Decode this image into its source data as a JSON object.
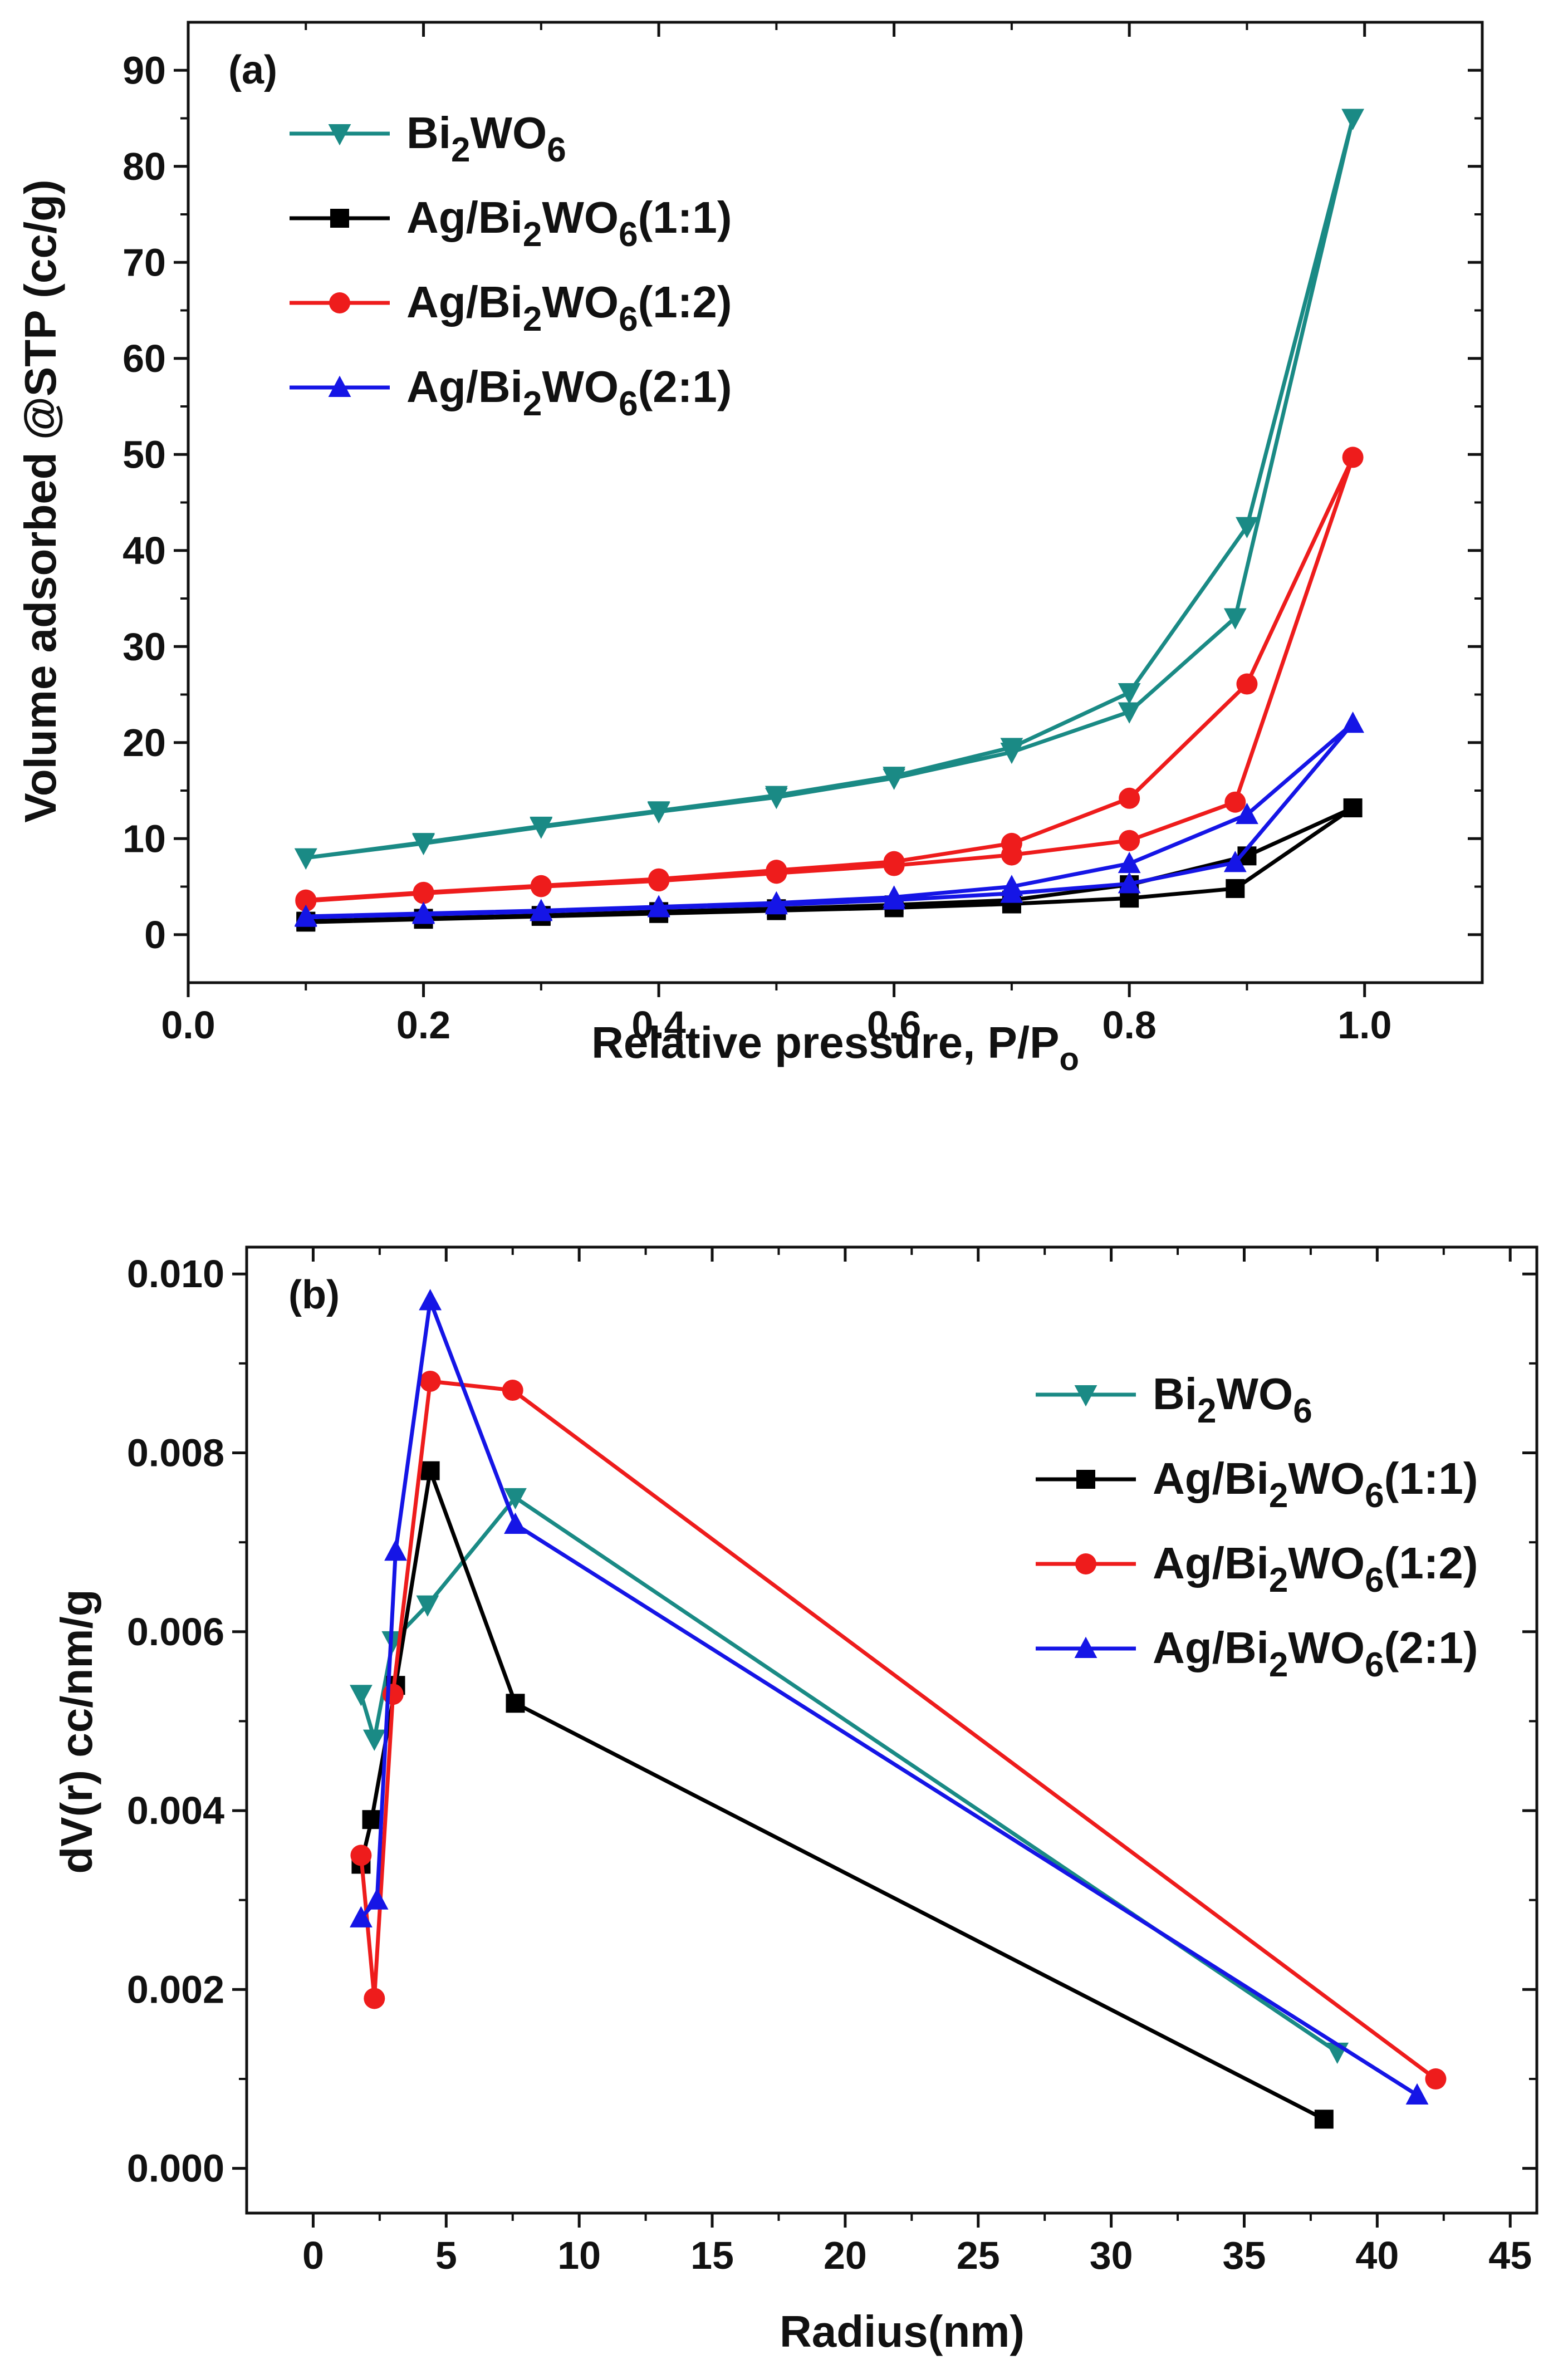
{
  "chart_data": [
    {
      "type": "line",
      "panel_label": "(a)",
      "title": "",
      "xlabel": "Relative pressure, P/P",
      "xlabel_sub": "o",
      "ylabel": "Volume adsorbed @STP (cc/g)",
      "xlim": [
        0.0,
        1.1
      ],
      "ylim": [
        -5,
        95
      ],
      "x_ticks": [
        "0.0",
        "0.2",
        "0.4",
        "0.6",
        "0.8",
        "1.0"
      ],
      "y_ticks": [
        "0",
        "10",
        "20",
        "30",
        "40",
        "50",
        "60",
        "70",
        "80",
        "90"
      ],
      "legend_position": "top-left",
      "series": [
        {
          "name": "Bi2WO6",
          "label_parts": [
            "Bi",
            "2",
            "WO",
            "6",
            ""
          ],
          "color": "#1a8a85",
          "marker": "triangle-down",
          "points": [
            [
              0.1,
              8
            ],
            [
              0.2,
              9.5
            ],
            [
              0.3,
              11.2
            ],
            [
              0.4,
              12.8
            ],
            [
              0.5,
              14.3
            ],
            [
              0.6,
              16.3
            ],
            [
              0.7,
              19
            ],
            [
              0.8,
              23.2
            ],
            [
              0.89,
              33
            ],
            [
              0.99,
              85
            ],
            [
              0.9,
              42.5
            ],
            [
              0.8,
              25.2
            ],
            [
              0.7,
              19.5
            ],
            [
              0.6,
              16.5
            ],
            [
              0.5,
              14.5
            ],
            [
              0.4,
              12.9
            ],
            [
              0.3,
              11.3
            ],
            [
              0.2,
              9.6
            ],
            [
              0.1,
              8
            ]
          ]
        },
        {
          "name": "Ag/Bi2WO6(1:1)",
          "label_parts": [
            "Ag/Bi",
            "2",
            "WO",
            "6",
            "(1:1)"
          ],
          "color": "#000000",
          "marker": "square",
          "points": [
            [
              0.1,
              1.3
            ],
            [
              0.2,
              1.6
            ],
            [
              0.3,
              1.9
            ],
            [
              0.4,
              2.2
            ],
            [
              0.5,
              2.5
            ],
            [
              0.6,
              2.8
            ],
            [
              0.7,
              3.2
            ],
            [
              0.8,
              3.8
            ],
            [
              0.89,
              4.8
            ],
            [
              0.99,
              13.2
            ],
            [
              0.9,
              8.2
            ],
            [
              0.8,
              5.2
            ],
            [
              0.7,
              3.6
            ],
            [
              0.6,
              3.1
            ],
            [
              0.5,
              2.7
            ],
            [
              0.4,
              2.4
            ],
            [
              0.3,
              2.0
            ],
            [
              0.2,
              1.7
            ],
            [
              0.1,
              1.4
            ]
          ]
        },
        {
          "name": "Ag/Bi2WO6(1:2)",
          "label_parts": [
            "Ag/Bi",
            "2",
            "WO",
            "6",
            "(1:2)"
          ],
          "color": "#ee1c1c",
          "marker": "circle",
          "points": [
            [
              0.1,
              3.5
            ],
            [
              0.2,
              4.3
            ],
            [
              0.3,
              5
            ],
            [
              0.4,
              5.6
            ],
            [
              0.5,
              6.4
            ],
            [
              0.6,
              7.2
            ],
            [
              0.7,
              8.3
            ],
            [
              0.8,
              9.8
            ],
            [
              0.89,
              13.8
            ],
            [
              0.99,
              49.7
            ],
            [
              0.9,
              26.1
            ],
            [
              0.8,
              14.2
            ],
            [
              0.7,
              9.5
            ],
            [
              0.6,
              7.6
            ],
            [
              0.5,
              6.7
            ],
            [
              0.4,
              5.8
            ],
            [
              0.3,
              5.1
            ],
            [
              0.2,
              4.4
            ],
            [
              0.1,
              3.6
            ]
          ]
        },
        {
          "name": "Ag/Bi2WO6(2:1)",
          "label_parts": [
            "Ag/Bi",
            "2",
            "WO",
            "6",
            "(2:1)"
          ],
          "color": "#1515e6",
          "marker": "triangle-up",
          "points": [
            [
              0.1,
              1.8
            ],
            [
              0.2,
              2.1
            ],
            [
              0.3,
              2.4
            ],
            [
              0.4,
              2.8
            ],
            [
              0.5,
              3.1
            ],
            [
              0.6,
              3.6
            ],
            [
              0.7,
              4.3
            ],
            [
              0.8,
              5.3
            ],
            [
              0.89,
              7.5
            ],
            [
              0.99,
              22
            ],
            [
              0.9,
              12.5
            ],
            [
              0.8,
              7.4
            ],
            [
              0.7,
              5
            ],
            [
              0.6,
              3.9
            ],
            [
              0.5,
              3.3
            ],
            [
              0.4,
              2.9
            ],
            [
              0.3,
              2.5
            ],
            [
              0.2,
              2.2
            ],
            [
              0.1,
              1.9
            ]
          ]
        }
      ]
    },
    {
      "type": "line",
      "panel_label": "(b)",
      "title": "",
      "xlabel": "Radius(nm)",
      "ylabel": "dV(r) cc/nm/g",
      "xlim": [
        -2.5,
        46
      ],
      "ylim": [
        -0.0005,
        0.0103
      ],
      "x_ticks": [
        "0",
        "5",
        "10",
        "15",
        "20",
        "25",
        "30",
        "35",
        "40",
        "45"
      ],
      "y_ticks": [
        "0.000",
        "0.002",
        "0.004",
        "0.006",
        "0.008",
        "0.010"
      ],
      "legend_position": "right",
      "series": [
        {
          "name": "Bi2WO6",
          "label_parts": [
            "Bi",
            "2",
            "WO",
            "6",
            ""
          ],
          "color": "#1a8a85",
          "marker": "triangle-down",
          "points": [
            [
              1.8,
              0.0053
            ],
            [
              2.3,
              0.0048
            ],
            [
              3.0,
              0.0059
            ],
            [
              4.3,
              0.0063
            ],
            [
              7.6,
              0.0075
            ],
            [
              38.5,
              0.0013
            ]
          ]
        },
        {
          "name": "Ag/Bi2WO6(1:1)",
          "label_parts": [
            "Ag/Bi",
            "2",
            "WO",
            "6",
            "(1:1)"
          ],
          "color": "#000000",
          "marker": "square",
          "points": [
            [
              1.8,
              0.0034
            ],
            [
              2.2,
              0.0039
            ],
            [
              3.1,
              0.0054
            ],
            [
              4.4,
              0.0078
            ],
            [
              7.6,
              0.0052
            ],
            [
              38.0,
              0.00055
            ]
          ]
        },
        {
          "name": "Ag/Bi2WO6(1:2)",
          "label_parts": [
            "Ag/Bi",
            "2",
            "WO",
            "6",
            "(1:2)"
          ],
          "color": "#ee1c1c",
          "marker": "circle",
          "points": [
            [
              1.8,
              0.0035
            ],
            [
              2.3,
              0.0019
            ],
            [
              3.0,
              0.0053
            ],
            [
              4.4,
              0.0088
            ],
            [
              7.5,
              0.0087
            ],
            [
              42.2,
              0.001
            ]
          ]
        },
        {
          "name": "Ag/Bi2WO6(2:1)",
          "label_parts": [
            "Ag/Bi",
            "2",
            "WO",
            "6",
            "(2:1)"
          ],
          "color": "#1515e6",
          "marker": "triangle-up",
          "points": [
            [
              1.8,
              0.0028
            ],
            [
              2.4,
              0.003
            ],
            [
              3.1,
              0.0069
            ],
            [
              4.4,
              0.0097
            ],
            [
              7.6,
              0.0072
            ],
            [
              41.5,
              0.00082
            ]
          ]
        }
      ]
    }
  ]
}
